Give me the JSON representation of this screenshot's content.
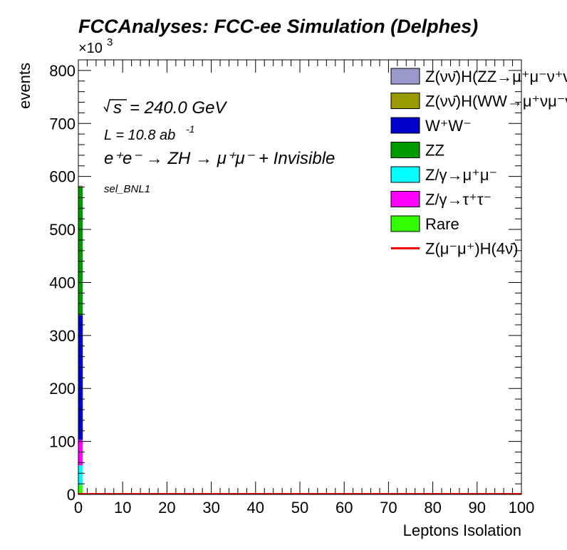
{
  "chart_data": {
    "type": "bar",
    "stacked": true,
    "title": "FCCAnalyses: FCC-ee Simulation (Delphes)",
    "xlabel": "Leptons Isolation",
    "ylabel": "events",
    "y_multiplier_label": "×10",
    "y_multiplier_exponent": "3",
    "xlim": [
      0,
      100
    ],
    "ylim": [
      0,
      820
    ],
    "x_ticks": [
      "0",
      "10",
      "20",
      "30",
      "40",
      "50",
      "60",
      "70",
      "80",
      "90",
      "100"
    ],
    "y_ticks": [
      "0",
      "100",
      "200",
      "300",
      "400",
      "500",
      "600",
      "700",
      "800"
    ],
    "y_tick_values": [
      0,
      100,
      200,
      300,
      400,
      500,
      600,
      700,
      800
    ],
    "annotations": {
      "energy": "= 240.0 GeV",
      "energy_symbol": "s",
      "lumi": "L = 10.8 ab",
      "lumi_exp": "-1",
      "process": "e⁺e⁻ → ZH → μ⁺μ⁻ + Invisible",
      "selection": "sel_BNL1"
    },
    "bin": [
      0,
      1
    ],
    "series": [
      {
        "name": "Rare",
        "color": "#33ff00",
        "values": [
          18
        ]
      },
      {
        "name": "Z/γ→μ⁺μ⁻",
        "color": "#00ffff",
        "values": [
          37
        ]
      },
      {
        "name": "Z/γ→τ⁺τ⁻",
        "color": "#ff00ff",
        "values": [
          48
        ]
      },
      {
        "name": "W⁺W⁻",
        "color": "#0000cc",
        "values": [
          235
        ]
      },
      {
        "name": "ZZ",
        "color": "#009900",
        "values": [
          243
        ]
      },
      {
        "name": "Z(νν̄)H(WW→μ⁺νμ⁻ν̄)",
        "color": "#999900",
        "values": [
          1
        ]
      },
      {
        "name": "Z(νν̄)H(ZZ→μ⁺μ⁻ν⁺ν⁻)",
        "color": "#9999cc",
        "values": [
          1
        ]
      }
    ],
    "legend": {
      "placement": "top-right",
      "entries": [
        {
          "label": "Z(νν̄)H(ZZ→μ⁺μ⁻ν⁺ν⁻)",
          "color": "#9999cc",
          "kind": "box"
        },
        {
          "label": "Z(νν̄)H(WW→μ⁺νμ⁻ν̄)",
          "color": "#999900",
          "kind": "box"
        },
        {
          "label": "W⁺W⁻",
          "color": "#0000cc",
          "kind": "box"
        },
        {
          "label": "ZZ",
          "color": "#009900",
          "kind": "box"
        },
        {
          "label": "Z/γ→μ⁺μ⁻",
          "color": "#00ffff",
          "kind": "box"
        },
        {
          "label": "Z/γ→τ⁺τ⁻",
          "color": "#ff00ff",
          "kind": "box"
        },
        {
          "label": "Rare",
          "color": "#33ff00",
          "kind": "box"
        },
        {
          "label": "Z(μ⁻μ⁺)H(4ν̄)",
          "color": "#ff0000",
          "kind": "line"
        }
      ]
    },
    "signal": {
      "name": "Z(μ⁻μ⁺)H(4ν̄)",
      "color": "#ff0000",
      "value": 0
    }
  }
}
